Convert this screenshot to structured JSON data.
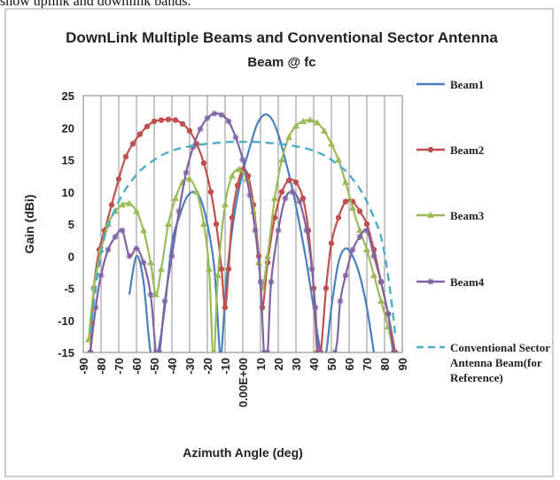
{
  "top_text": "show uplink and downlink bands.",
  "chart_data": {
    "type": "line",
    "title": "DownLink Multiple Beams and Conventional Sector Antenna",
    "subtitle": "Beam @ fc",
    "xlabel": "Azimuth Angle (deg)",
    "ylabel": "Gain (dBi)",
    "xlim": [
      -90,
      90
    ],
    "ylim": [
      -15,
      25
    ],
    "x_ticks": [
      "-90",
      "-80",
      "-70",
      "-60",
      "-50",
      "-40",
      "-30",
      "-20",
      "-10",
      "0.00E+00",
      "10",
      "20",
      "30",
      "40",
      "50",
      "60",
      "70",
      "80",
      "90"
    ],
    "y_ticks": [
      "25",
      "20",
      "15",
      "10",
      "5",
      "0",
      "-5",
      "-10",
      "-15"
    ],
    "grid": "vertical",
    "legend_position": "right",
    "series": [
      {
        "name": "Beam1",
        "color": "#4a7ebf",
        "marker": "none",
        "dash": "solid",
        "points": [
          [
            -64,
            -6
          ],
          [
            -60,
            0
          ],
          [
            -56,
            -4
          ],
          [
            -52,
            -15
          ],
          [
            -48,
            -15
          ],
          [
            -44,
            -8
          ],
          [
            -40,
            2
          ],
          [
            -36,
            6
          ],
          [
            -32,
            9
          ],
          [
            -28,
            10
          ],
          [
            -24,
            9
          ],
          [
            -20,
            5
          ],
          [
            -16,
            -2
          ],
          [
            -13,
            -15
          ],
          [
            -12,
            -15
          ],
          [
            -9,
            -3
          ],
          [
            -5,
            6
          ],
          [
            -1,
            12
          ],
          [
            4,
            17
          ],
          [
            8,
            20.5
          ],
          [
            12,
            22
          ],
          [
            16,
            21.5
          ],
          [
            20,
            19
          ],
          [
            24,
            15
          ],
          [
            28,
            10.5
          ],
          [
            32,
            5
          ],
          [
            36,
            -1
          ],
          [
            40,
            -8
          ],
          [
            44,
            -15
          ],
          [
            47,
            -15
          ],
          [
            50,
            -8
          ],
          [
            54,
            -1
          ],
          [
            58,
            1.2
          ],
          [
            62,
            0
          ],
          [
            66,
            -3
          ],
          [
            70,
            -8
          ],
          [
            74,
            -15
          ]
        ]
      },
      {
        "name": "Beam2",
        "color": "#c0504d",
        "marker": "circle",
        "dash": "solid",
        "points": [
          [
            -86,
            -15
          ],
          [
            -84,
            -5
          ],
          [
            -81,
            1
          ],
          [
            -78,
            4
          ],
          [
            -74,
            8
          ],
          [
            -70,
            12
          ],
          [
            -66,
            15.5
          ],
          [
            -62,
            17.5
          ],
          [
            -58,
            19
          ],
          [
            -54,
            20.2
          ],
          [
            -50,
            21
          ],
          [
            -46,
            21.2
          ],
          [
            -42,
            21.3
          ],
          [
            -38,
            21.2
          ],
          [
            -34,
            20.6
          ],
          [
            -30,
            19.5
          ],
          [
            -26,
            17.5
          ],
          [
            -22,
            14.5
          ],
          [
            -18,
            10
          ],
          [
            -15,
            5
          ],
          [
            -12,
            -2
          ],
          [
            -10,
            -8
          ],
          [
            -8,
            -2
          ],
          [
            -6,
            6
          ],
          [
            -3,
            11
          ],
          [
            0,
            13.5
          ],
          [
            3,
            12.5
          ],
          [
            6,
            8
          ],
          [
            9,
            0
          ],
          [
            11,
            -8
          ],
          [
            14,
            -1
          ],
          [
            18,
            6
          ],
          [
            22,
            10
          ],
          [
            26,
            11.8
          ],
          [
            30,
            11.5
          ],
          [
            34,
            9
          ],
          [
            37,
            4
          ],
          [
            40,
            -5
          ],
          [
            42,
            -15
          ],
          [
            44,
            -15
          ],
          [
            47,
            -5
          ],
          [
            50,
            2
          ],
          [
            54,
            6
          ],
          [
            58,
            8.5
          ],
          [
            62,
            8.5
          ],
          [
            66,
            7
          ],
          [
            70,
            5
          ],
          [
            74,
            1
          ],
          [
            78,
            -4
          ],
          [
            82,
            -9
          ],
          [
            86,
            -15
          ]
        ]
      },
      {
        "name": "Beam3",
        "color": "#9bbb59",
        "marker": "triangle",
        "dash": "solid",
        "points": [
          [
            -87,
            -13
          ],
          [
            -84,
            -5
          ],
          [
            -80,
            1
          ],
          [
            -76,
            5
          ],
          [
            -72,
            7
          ],
          [
            -68,
            8
          ],
          [
            -64,
            8.2
          ],
          [
            -60,
            7
          ],
          [
            -56,
            4
          ],
          [
            -52,
            -1
          ],
          [
            -49,
            -6
          ],
          [
            -46,
            -2
          ],
          [
            -42,
            5
          ],
          [
            -38,
            9
          ],
          [
            -34,
            11.5
          ],
          [
            -30,
            12
          ],
          [
            -26,
            10
          ],
          [
            -22,
            5
          ],
          [
            -19,
            -2
          ],
          [
            -17,
            -15
          ],
          [
            -16,
            -15
          ],
          [
            -14,
            -3
          ],
          [
            -10,
            8
          ],
          [
            -6,
            12.5
          ],
          [
            -2,
            13.5
          ],
          [
            2,
            12
          ],
          [
            6,
            7
          ],
          [
            9,
            -1
          ],
          [
            11,
            -5
          ],
          [
            14,
            0
          ],
          [
            18,
            9
          ],
          [
            22,
            15
          ],
          [
            26,
            18.5
          ],
          [
            30,
            20.3
          ],
          [
            34,
            21
          ],
          [
            38,
            21.2
          ],
          [
            42,
            20.8
          ],
          [
            46,
            19.5
          ],
          [
            50,
            17.5
          ],
          [
            54,
            15
          ],
          [
            58,
            11.5
          ],
          [
            62,
            7.5
          ],
          [
            66,
            4
          ],
          [
            70,
            1
          ],
          [
            74,
            -3
          ],
          [
            78,
            -7
          ],
          [
            82,
            -11
          ],
          [
            85,
            -15
          ]
        ]
      },
      {
        "name": "Beam4",
        "color": "#8064a2",
        "marker": "star",
        "dash": "solid",
        "points": [
          [
            -86,
            -15
          ],
          [
            -83,
            -8
          ],
          [
            -80,
            -3
          ],
          [
            -76,
            1
          ],
          [
            -72,
            3
          ],
          [
            -68,
            4
          ],
          [
            -64,
            0
          ],
          [
            -60,
            1.2
          ],
          [
            -56,
            -1
          ],
          [
            -52,
            -6
          ],
          [
            -49,
            -15
          ],
          [
            -47,
            -15
          ],
          [
            -44,
            -7
          ],
          [
            -40,
            0
          ],
          [
            -36,
            7
          ],
          [
            -32,
            13
          ],
          [
            -28,
            17
          ],
          [
            -24,
            19.8
          ],
          [
            -20,
            21.5
          ],
          [
            -16,
            22.2
          ],
          [
            -12,
            22
          ],
          [
            -8,
            21
          ],
          [
            -4,
            18.5
          ],
          [
            0,
            15
          ],
          [
            4,
            9.5
          ],
          [
            7,
            4
          ],
          [
            10,
            -4
          ],
          [
            12,
            -15
          ],
          [
            14,
            -15
          ],
          [
            16,
            -4
          ],
          [
            20,
            4
          ],
          [
            24,
            9
          ],
          [
            28,
            10
          ],
          [
            32,
            8.5
          ],
          [
            36,
            4
          ],
          [
            39,
            -2
          ],
          [
            41,
            -8
          ],
          [
            43,
            -15
          ],
          [
            52,
            -15
          ],
          [
            55,
            -7
          ],
          [
            58,
            -3
          ],
          [
            62,
            1
          ],
          [
            66,
            3
          ],
          [
            70,
            4
          ],
          [
            74,
            0
          ],
          [
            78,
            -4
          ],
          [
            82,
            -9
          ],
          [
            85,
            -15
          ]
        ]
      },
      {
        "name": "Conventional Sector Antenna Beam(for Reference)",
        "color": "#4bacc6",
        "marker": "none",
        "dash": "dashed",
        "points": [
          [
            -86,
            -12
          ],
          [
            -82,
            -3
          ],
          [
            -78,
            3
          ],
          [
            -74,
            6
          ],
          [
            -70,
            8.5
          ],
          [
            -66,
            10.5
          ],
          [
            -62,
            12
          ],
          [
            -58,
            13.3
          ],
          [
            -54,
            14.2
          ],
          [
            -50,
            15
          ],
          [
            -46,
            15.7
          ],
          [
            -42,
            16.2
          ],
          [
            -38,
            16.6
          ],
          [
            -34,
            16.9
          ],
          [
            -30,
            17.1
          ],
          [
            -26,
            17.3
          ],
          [
            -20,
            17.5
          ],
          [
            -12,
            17.7
          ],
          [
            -6,
            17.8
          ],
          [
            0,
            17.8
          ],
          [
            6,
            17.8
          ],
          [
            12,
            17.7
          ],
          [
            20,
            17.5
          ],
          [
            26,
            17.3
          ],
          [
            30,
            17.1
          ],
          [
            34,
            16.9
          ],
          [
            38,
            16.6
          ],
          [
            42,
            16.2
          ],
          [
            46,
            15.7
          ],
          [
            50,
            15
          ],
          [
            54,
            14.2
          ],
          [
            58,
            13.3
          ],
          [
            62,
            12
          ],
          [
            66,
            10.5
          ],
          [
            70,
            8.5
          ],
          [
            74,
            6
          ],
          [
            78,
            3
          ],
          [
            82,
            -3
          ],
          [
            86,
            -12
          ]
        ]
      }
    ]
  }
}
